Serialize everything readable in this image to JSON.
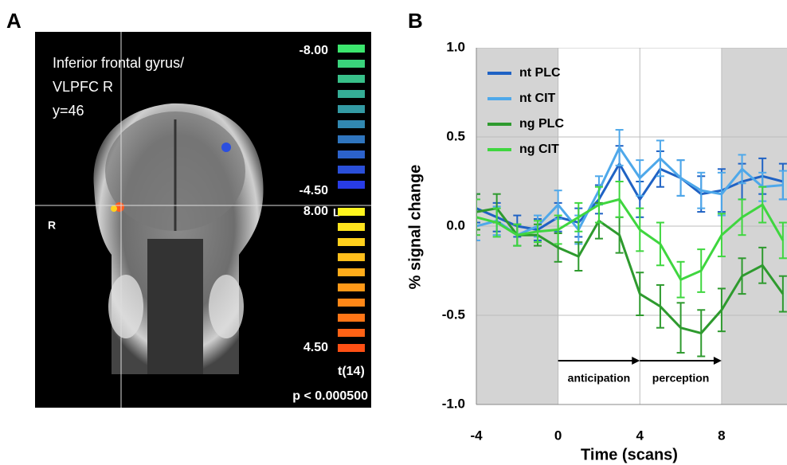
{
  "panel_a": {
    "label": "A",
    "region_lines": [
      "Inferior frontal gyrus/",
      "VLPFC R",
      "y=46"
    ],
    "side_left": "R",
    "side_right": "L",
    "negative_scale": [
      "-8.00",
      "-4.50"
    ],
    "positive_scale": [
      "8.00",
      "4.50"
    ],
    "statistic": "t(14)",
    "threshold": "p < 0.000500"
  },
  "chart_data": {
    "type": "line",
    "panel_label": "B",
    "x_label": "Time  (scans)",
    "y_label": "% signal change",
    "x": [
      -4,
      -3,
      -2,
      -1,
      0,
      1,
      2,
      3,
      4,
      5,
      6,
      7,
      8,
      9,
      10,
      11
    ],
    "xlim": [
      -4,
      11.2
    ],
    "ylim": [
      -1,
      1
    ],
    "xticks": [
      -4,
      0,
      4,
      8
    ],
    "yticks": [
      {
        "value": -1,
        "label": "-1.0"
      },
      {
        "value": -0.5,
        "label": "-0.5"
      },
      {
        "value": 0,
        "label": "0.0"
      },
      {
        "value": 0.5,
        "label": "0.5"
      },
      {
        "value": 1,
        "label": "1.0"
      }
    ],
    "grid": true,
    "legend": "upper left",
    "shaded": [
      [
        -4,
        0
      ],
      [
        8,
        12
      ]
    ],
    "annotations": [
      {
        "text": "anticipation",
        "x": [
          0,
          4
        ]
      },
      {
        "text": "perception",
        "x": [
          4,
          8
        ]
      }
    ],
    "series": [
      {
        "name": "nt PLC",
        "color": "#1f62c4",
        "values": [
          0.1,
          0.05,
          0.0,
          -0.02,
          0.05,
          0.02,
          0.15,
          0.35,
          0.15,
          0.32,
          0.27,
          0.18,
          0.2,
          0.25,
          0.28,
          0.25
        ],
        "errors": [
          0.08,
          0.08,
          0.06,
          0.06,
          0.08,
          0.08,
          0.08,
          0.1,
          0.1,
          0.1,
          0.1,
          0.1,
          0.12,
          0.1,
          0.1,
          0.1
        ]
      },
      {
        "name": "nt CIT",
        "color": "#4ea8ea",
        "values": [
          0.0,
          0.03,
          -0.05,
          0.0,
          0.12,
          -0.02,
          0.2,
          0.44,
          0.27,
          0.38,
          0.27,
          0.2,
          0.18,
          0.32,
          0.22,
          0.23
        ],
        "errors": [
          0.08,
          0.08,
          0.06,
          0.06,
          0.08,
          0.08,
          0.08,
          0.1,
          0.1,
          0.1,
          0.1,
          0.1,
          0.12,
          0.08,
          0.08,
          0.08
        ]
      },
      {
        "name": "ng PLC",
        "color": "#2e9a2e",
        "values": [
          0.08,
          0.1,
          -0.05,
          -0.05,
          -0.12,
          -0.17,
          0.03,
          -0.05,
          -0.38,
          -0.45,
          -0.57,
          -0.6,
          -0.47,
          -0.28,
          -0.22,
          -0.38
        ],
        "errors": [
          0.1,
          0.08,
          0.06,
          0.06,
          0.08,
          0.08,
          0.1,
          0.1,
          0.12,
          0.12,
          0.14,
          0.13,
          0.12,
          0.1,
          0.1,
          0.1
        ]
      },
      {
        "name": "ng CIT",
        "color": "#3fd63f",
        "values": [
          0.05,
          0.02,
          -0.05,
          -0.03,
          -0.02,
          0.05,
          0.12,
          0.15,
          -0.02,
          -0.1,
          -0.3,
          -0.25,
          -0.05,
          0.05,
          0.12,
          -0.08
        ],
        "errors": [
          0.1,
          0.08,
          0.06,
          0.06,
          0.08,
          0.08,
          0.1,
          0.1,
          0.12,
          0.12,
          0.1,
          0.12,
          0.12,
          0.1,
          0.1,
          0.1
        ]
      }
    ]
  }
}
